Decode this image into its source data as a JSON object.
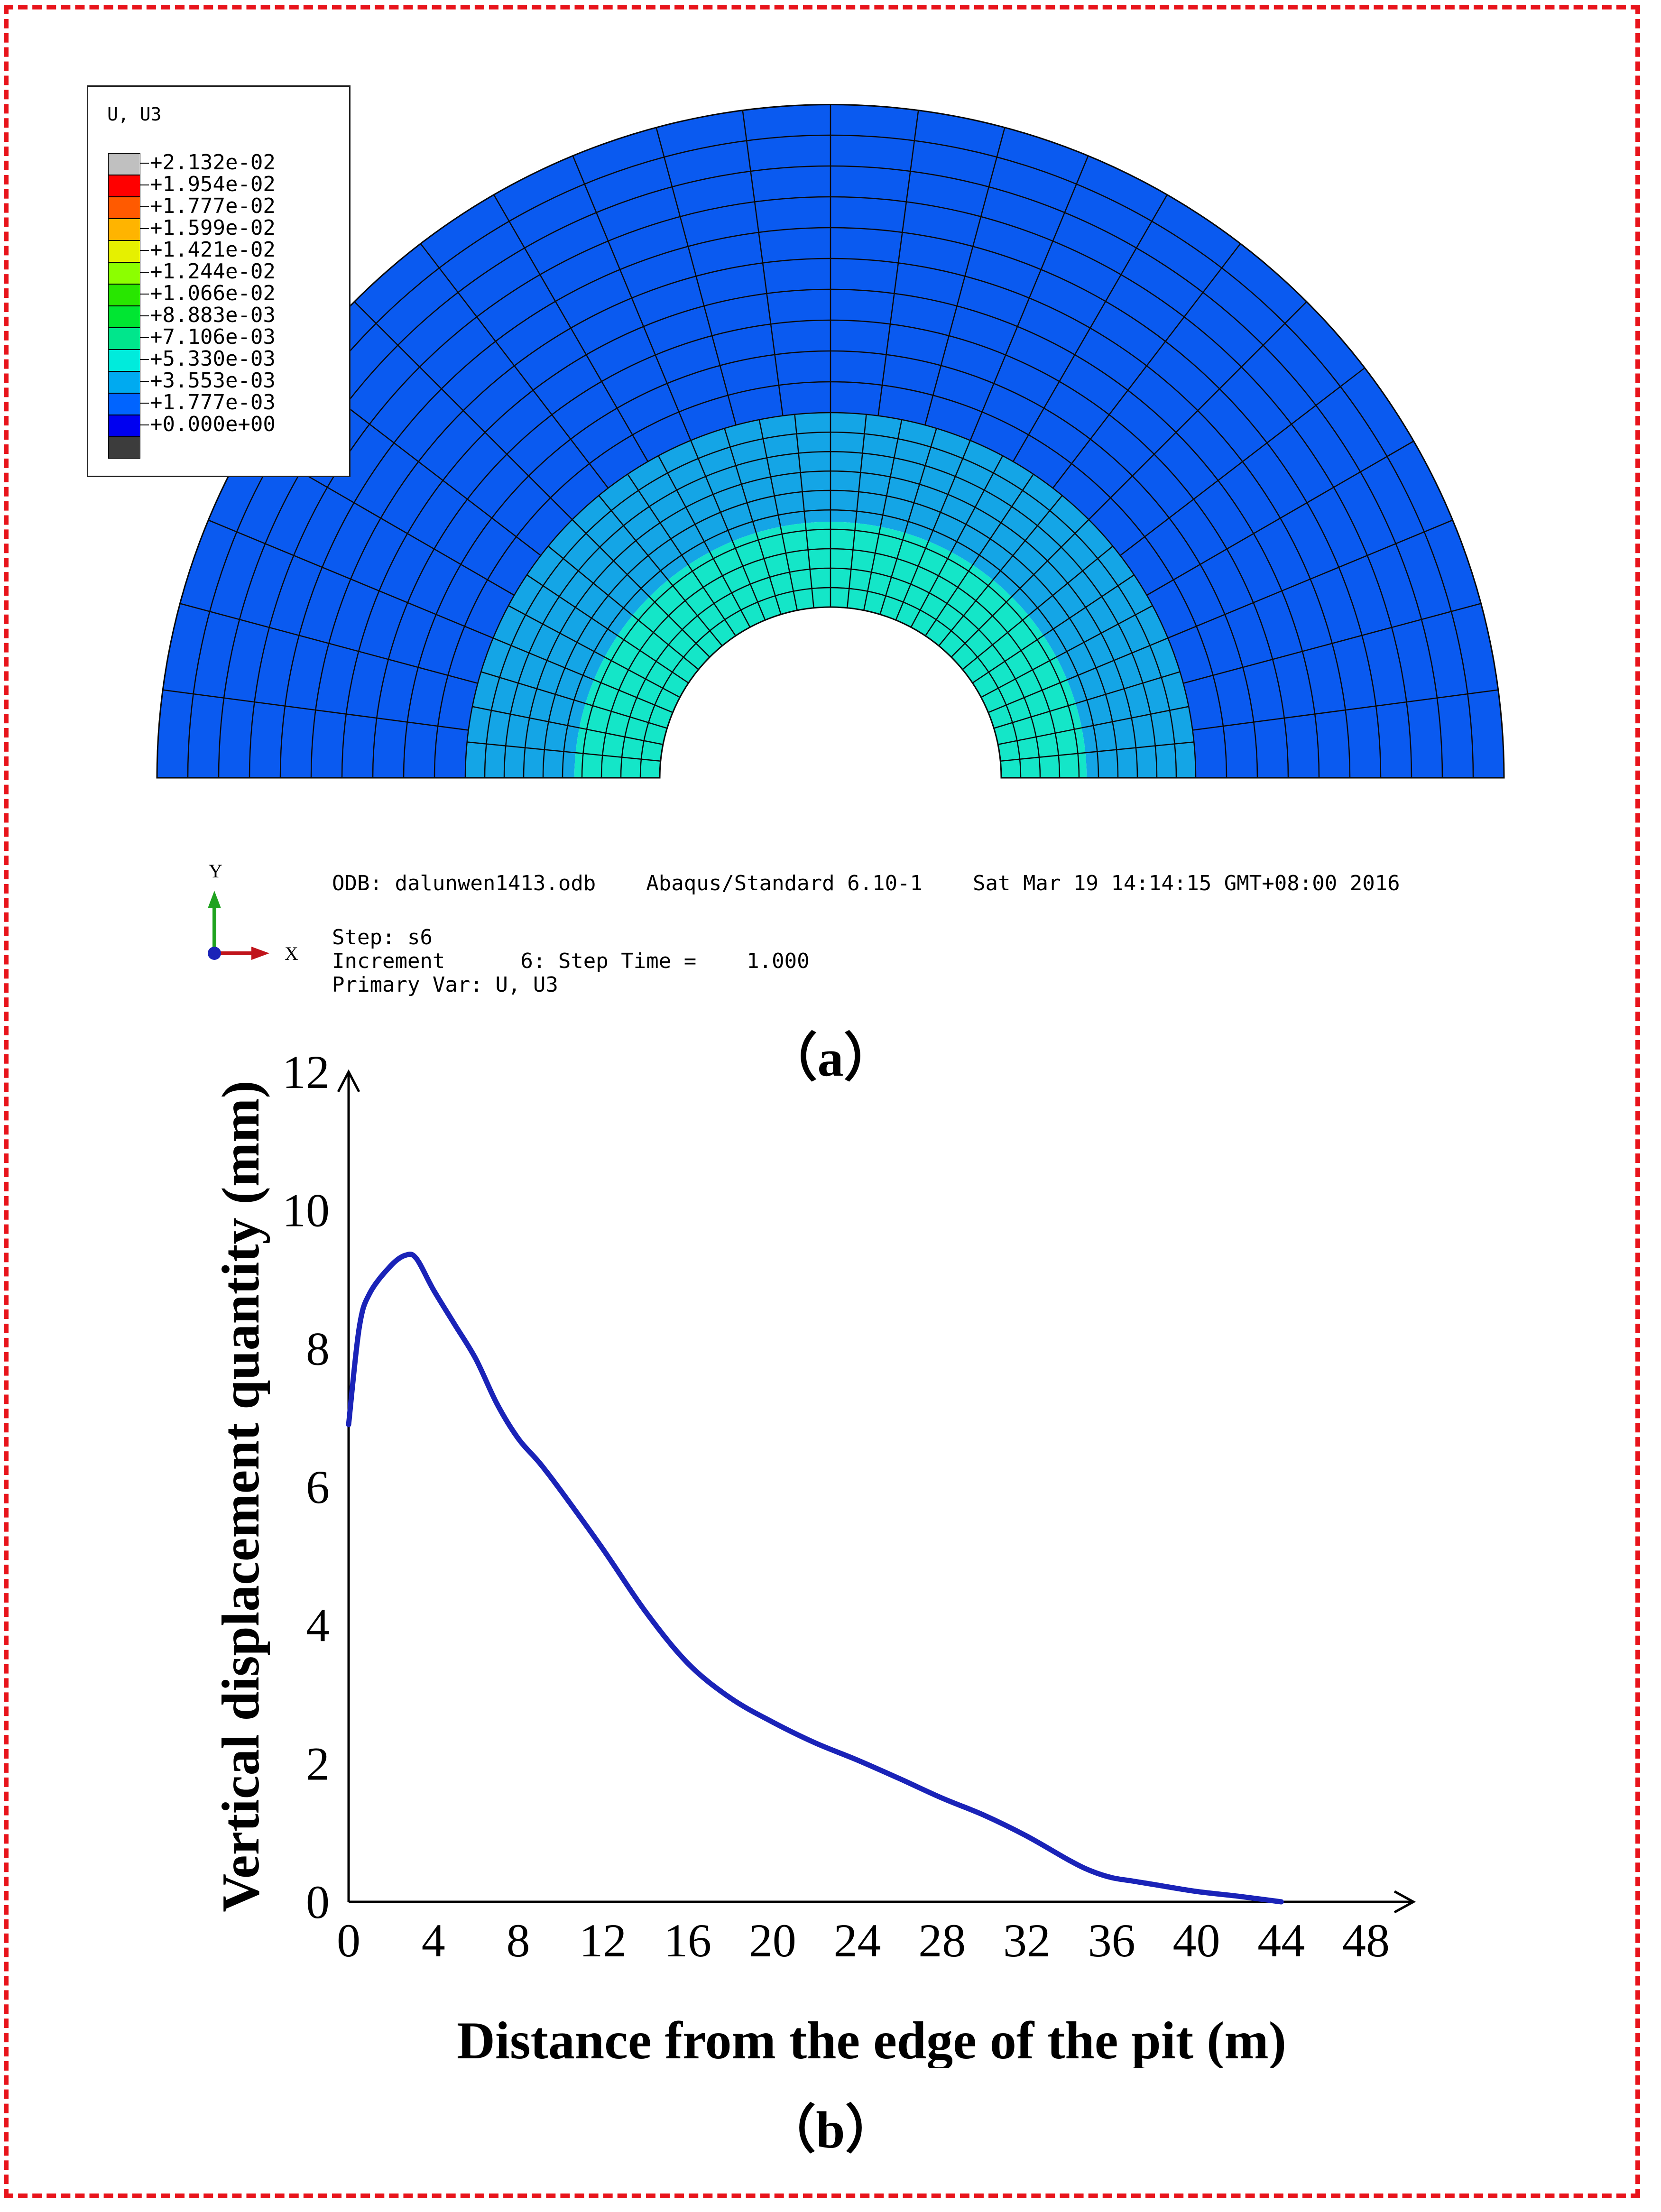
{
  "figure_a": {
    "caption": "（a）",
    "legend": {
      "title": "U, U3",
      "entries": [
        {
          "label": "+2.132e-02",
          "color": "#c0c0c0"
        },
        {
          "label": "+1.954e-02",
          "color": "#ff0000"
        },
        {
          "label": "+1.777e-02",
          "color": "#ff5a00"
        },
        {
          "label": "+1.599e-02",
          "color": "#ffb400"
        },
        {
          "label": "+1.421e-02",
          "color": "#e6f000"
        },
        {
          "label": "+1.244e-02",
          "color": "#8cff00"
        },
        {
          "label": "+1.066e-02",
          "color": "#28e600"
        },
        {
          "label": "+8.883e-03",
          "color": "#00e632"
        },
        {
          "label": "+7.106e-03",
          "color": "#00e68c"
        },
        {
          "label": "+5.330e-03",
          "color": "#00ebdc"
        },
        {
          "label": "+3.553e-03",
          "color": "#00aaf0"
        },
        {
          "label": "+1.777e-03",
          "color": "#0064ff"
        },
        {
          "label": "+0.000e+00",
          "color": "#0000f0"
        }
      ],
      "bottom_swatch_color": "#3c3c3c"
    },
    "model_colors": {
      "outer": "#0a5af0",
      "middle": "#14a5e6",
      "inner": "#14e6c8"
    },
    "triad": {
      "y_label": "Y",
      "x_label": "X"
    },
    "info": {
      "odb_line": "ODB: dalunwen1413.odb    Abaqus/Standard 6.10-1    Sat Mar 19 14:14:15 GMT+08:00 2016",
      "step_line": "Step: s6",
      "increment_line": "Increment      6: Step Time =    1.000",
      "primary_var_line": "Primary Var: U, U3"
    }
  },
  "figure_b": {
    "caption": "（b）"
  },
  "chart_data": {
    "type": "line",
    "title": "",
    "xlabel": "Distance from the edge of the pit (m)",
    "ylabel": "Vertical displacement quantity (mm)",
    "xlim": [
      0,
      48
    ],
    "ylim": [
      0,
      12
    ],
    "xticks": [
      "0",
      "4",
      "8",
      "12",
      "16",
      "20",
      "24",
      "28",
      "32",
      "36",
      "40",
      "44",
      "48"
    ],
    "yticks": [
      "0",
      "2",
      "4",
      "6",
      "8",
      "10",
      "12"
    ],
    "line_color": "#1a23b8",
    "series": [
      {
        "name": "Vertical displacement",
        "x": [
          0,
          0.5,
          1,
          2,
          2.7,
          3.2,
          4,
          5,
          6,
          7,
          8,
          9,
          10,
          12,
          14,
          16,
          18,
          20,
          22,
          24,
          26,
          28,
          30,
          32,
          34,
          35,
          36,
          37,
          38,
          40,
          42,
          44
        ],
        "y": [
          6.9,
          8.3,
          8.8,
          9.2,
          9.35,
          9.3,
          8.85,
          8.35,
          7.85,
          7.2,
          6.7,
          6.35,
          5.95,
          5.1,
          4.2,
          3.45,
          2.95,
          2.6,
          2.3,
          2.05,
          1.78,
          1.5,
          1.25,
          0.95,
          0.6,
          0.45,
          0.35,
          0.3,
          0.25,
          0.15,
          0.08,
          0.0
        ]
      }
    ]
  }
}
